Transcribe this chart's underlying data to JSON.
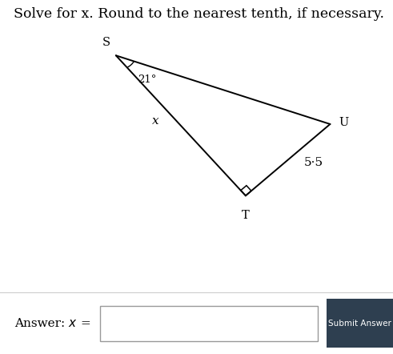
{
  "title_text": "Solve for x. Round to the nearest tenth, if necessary.",
  "bg_color": "#ffffff",
  "answer_bg_color": "#ebebeb",
  "submit_btn_color": "#2e3f50",
  "S": [
    0.295,
    0.81
  ],
  "T": [
    0.625,
    0.33
  ],
  "U": [
    0.84,
    0.575
  ],
  "angle_label": "21°",
  "side_label_x": "x",
  "side_label_ut": "5·5",
  "label_S": "S",
  "label_T": "T",
  "label_U": "U",
  "line_color": "#000000",
  "text_color": "#000000",
  "font_size_title": 12.5,
  "font_size_labels": 10.5,
  "sq_size": 0.022
}
